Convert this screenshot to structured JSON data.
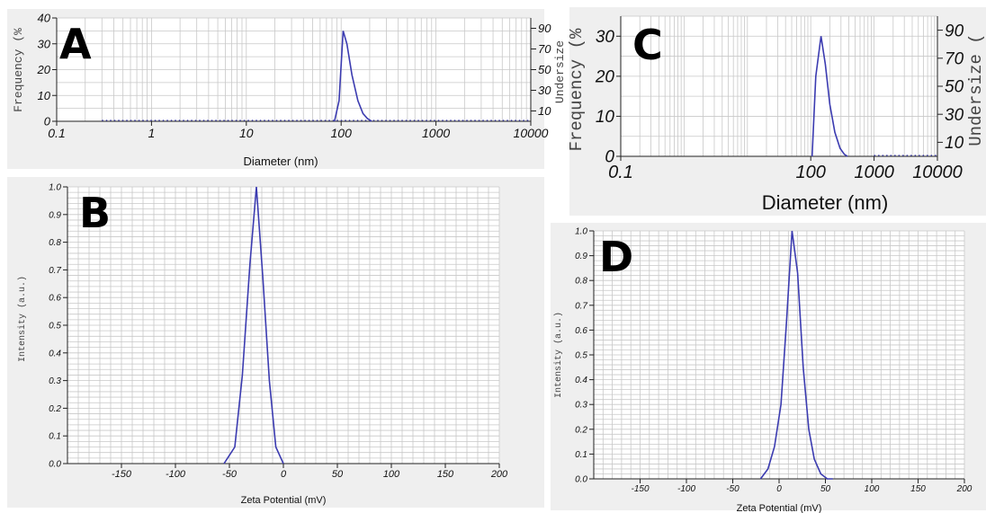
{
  "chart_data": [
    {
      "panel": "A",
      "type": "line",
      "xlabel": "Diameter (nm)",
      "ylabel": "Frequency (%",
      "y2label": "Undersize",
      "xscale": "log",
      "xlim": [
        0.1,
        10000
      ],
      "ylim": [
        0,
        40
      ],
      "y2lim": [
        0,
        100
      ],
      "x_ticks": [
        "0.1",
        "1",
        "10",
        "100",
        "1000",
        "10000"
      ],
      "y_ticks": [
        "0",
        "10",
        "20",
        "30",
        "40"
      ],
      "y2_ticks": [
        "10",
        "30",
        "50",
        "70",
        "90"
      ],
      "series": [
        {
          "x": [
            85,
            95,
            105,
            115,
            130,
            150,
            170,
            190,
            210
          ],
          "y": [
            0,
            8,
            35,
            30,
            18,
            8,
            3,
            1,
            0
          ]
        }
      ],
      "undersize_dotted": {
        "x": [
          0.3,
          10000
        ],
        "y": [
          0,
          0
        ]
      }
    },
    {
      "panel": "B",
      "type": "line",
      "xlabel": "Zeta Potential (mV)",
      "ylabel": "Intensity (a.u.)",
      "xlim": [
        -200,
        200
      ],
      "ylim": [
        0,
        1.0
      ],
      "x_ticks": [
        "-150",
        "-100",
        "-50",
        "0",
        "50",
        "100",
        "150",
        "200"
      ],
      "y_ticks": [
        "0.0",
        "0.1",
        "0.2",
        "0.3",
        "0.4",
        "0.5",
        "0.6",
        "0.7",
        "0.8",
        "0.9",
        "1.0"
      ],
      "series": [
        {
          "x": [
            -55,
            -45,
            -38,
            -31,
            -25,
            -19,
            -13,
            -7,
            0
          ],
          "y": [
            0,
            0.06,
            0.32,
            0.72,
            1.0,
            0.67,
            0.3,
            0.06,
            0
          ]
        }
      ]
    },
    {
      "panel": "C",
      "type": "line",
      "xlabel": "Diameter (nm)",
      "ylabel": "Frequency (%",
      "y2label": "Undersize",
      "xscale": "log",
      "xlim": [
        0.1,
        10000
      ],
      "ylim": [
        0,
        35
      ],
      "y2lim": [
        0,
        100
      ],
      "x_ticks": [
        "0.1",
        "100",
        "1000",
        "10000"
      ],
      "y_ticks": [
        "0",
        "10",
        "20",
        "30"
      ],
      "y2_ticks": [
        "10",
        "30",
        "50",
        "70",
        "90"
      ],
      "series": [
        {
          "x": [
            105,
            120,
            145,
            170,
            200,
            240,
            290,
            340,
            380
          ],
          "y": [
            0,
            20,
            30,
            23,
            13,
            6,
            2,
            0.5,
            0
          ]
        }
      ],
      "undersize_dotted": {
        "x": [
          1000,
          10000
        ],
        "y": [
          0,
          0
        ]
      }
    },
    {
      "panel": "D",
      "type": "line",
      "xlabel": "Zeta Potential (mV)",
      "ylabel": "Intensity (a.u.)",
      "xlim": [
        -200,
        200
      ],
      "ylim": [
        0,
        1.0
      ],
      "x_ticks": [
        "-150",
        "-100",
        "-50",
        "0",
        "50",
        "100",
        "150",
        "200"
      ],
      "y_ticks": [
        "0.0",
        "0.1",
        "0.2",
        "0.3",
        "0.4",
        "0.5",
        "0.6",
        "0.7",
        "0.8",
        "0.9",
        "1.0"
      ],
      "series": [
        {
          "x": [
            -20,
            -12,
            -5,
            2,
            8,
            14,
            20,
            26,
            32,
            38,
            45,
            52,
            58
          ],
          "y": [
            0,
            0.04,
            0.13,
            0.3,
            0.63,
            1.0,
            0.83,
            0.45,
            0.2,
            0.08,
            0.02,
            0,
            0
          ]
        }
      ]
    }
  ],
  "panels": {
    "a": {
      "letter": "A",
      "xlabel": "Diameter (nm)",
      "ylabel": "Frequency (%",
      "y2label": "Undersize"
    },
    "b": {
      "letter": "B",
      "xlabel": "Zeta Potential (mV)",
      "ylabel": "Intensity (a.u.)"
    },
    "c": {
      "letter": "C",
      "xlabel": "Diameter (nm)",
      "ylabel": "Frequency (%",
      "y2label": "Undersize ("
    },
    "d": {
      "letter": "D",
      "xlabel": "Zeta Potential (mV)",
      "ylabel": "Intensity (a.u.)"
    }
  },
  "colors": {
    "curve": "#3b3bb0",
    "grid": "#c8c8c8",
    "panel_bg": "#efefef"
  }
}
